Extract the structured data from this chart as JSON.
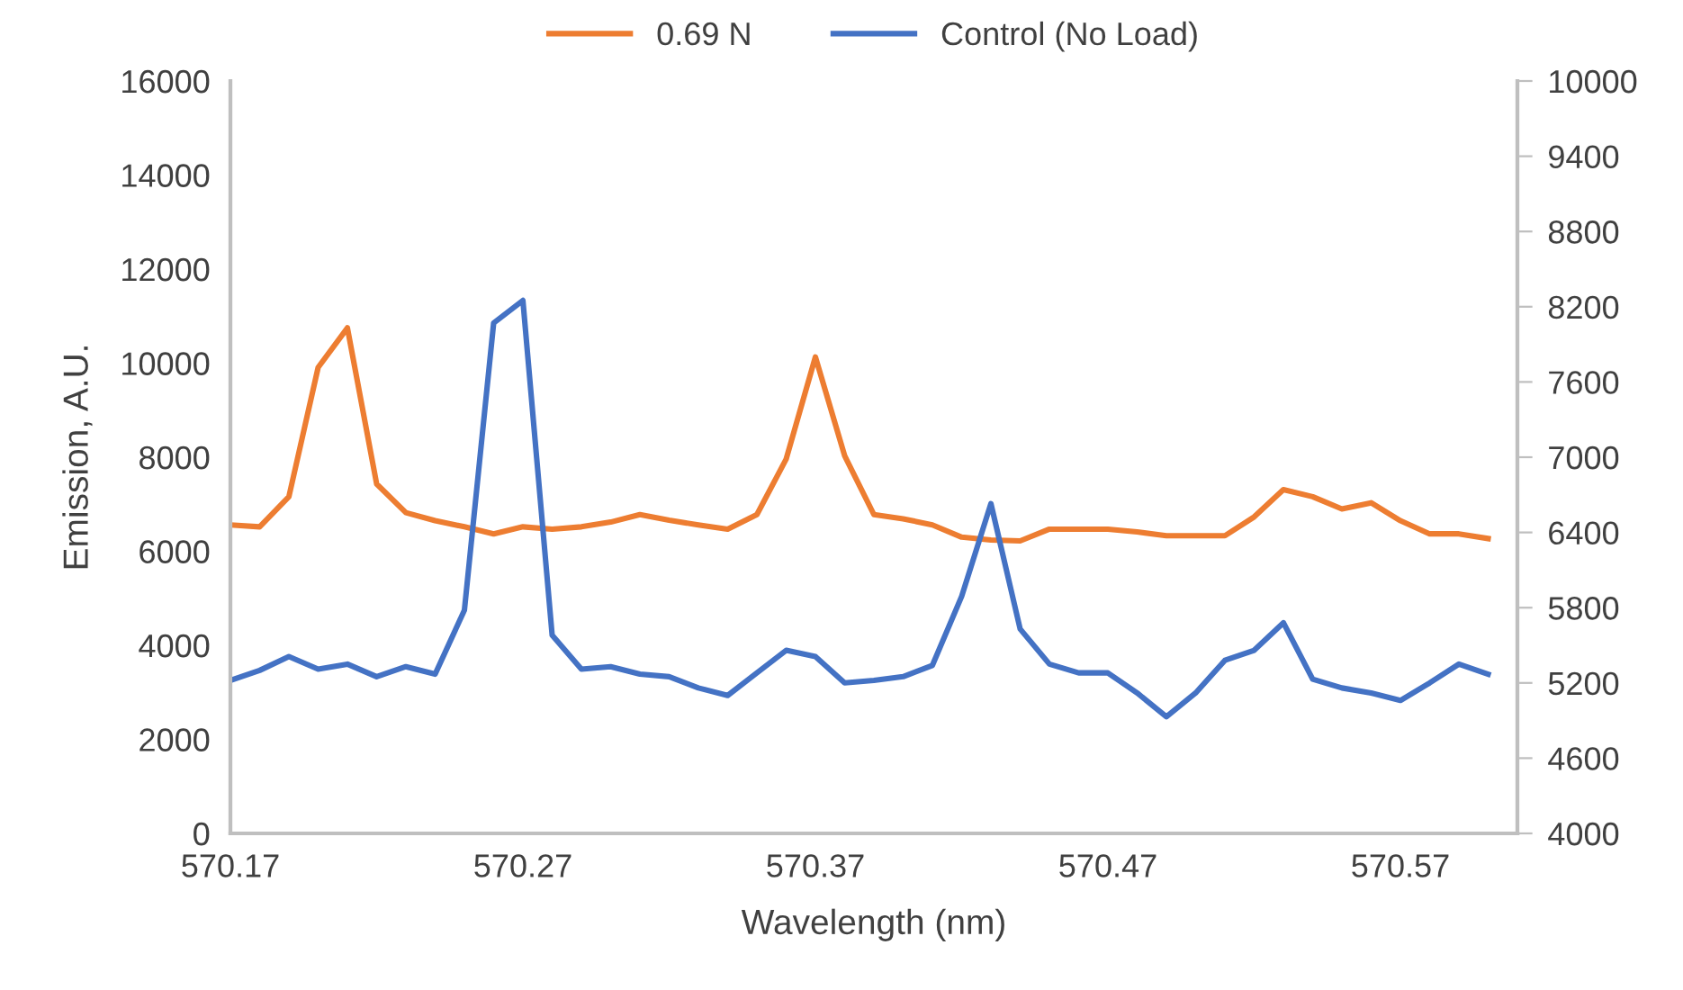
{
  "chart_data": {
    "type": "line",
    "xlabel": "Wavelength (nm)",
    "ylabel": "Emission, A.U.",
    "x": [
      570.17,
      570.18,
      570.19,
      570.2,
      570.21,
      570.22,
      570.23,
      570.24,
      570.25,
      570.26,
      570.27,
      570.28,
      570.29,
      570.3,
      570.31,
      570.32,
      570.33,
      570.34,
      570.35,
      570.36,
      570.37,
      570.38,
      570.39,
      570.4,
      570.41,
      570.42,
      570.43,
      570.44,
      570.45,
      570.46,
      570.47,
      570.48,
      570.49,
      570.5,
      570.51,
      570.52,
      570.53,
      570.54,
      570.55,
      570.56,
      570.57,
      570.58,
      570.59,
      570.6
    ],
    "series": [
      {
        "name": "0.69 N",
        "color": "#ed7d31",
        "values": [
          6560,
          6520,
          7160,
          9910,
          10750,
          7430,
          6820,
          6650,
          6520,
          6370,
          6520,
          6470,
          6520,
          6620,
          6780,
          6660,
          6560,
          6470,
          6780,
          7960,
          10130,
          8030,
          6780,
          6690,
          6560,
          6300,
          6240,
          6220,
          6470,
          6470,
          6470,
          6410,
          6330,
          6330,
          6330,
          6730,
          7310,
          7160,
          6900,
          7030,
          6650,
          6370,
          6370,
          6270
        ]
      },
      {
        "name": "Control (No Load)",
        "color": "#4472c4",
        "axis": "y2",
        "values": [
          5220,
          5300,
          5410,
          5310,
          5350,
          5250,
          5330,
          5270,
          5780,
          8070,
          8250,
          5580,
          5310,
          5330,
          5270,
          5250,
          5160,
          5100,
          5280,
          5460,
          5410,
          5200,
          5220,
          5250,
          5340,
          5890,
          6630,
          5630,
          5350,
          5280,
          5280,
          5120,
          4930,
          5120,
          5380,
          5460,
          5680,
          5230,
          5160,
          5120,
          5060,
          5200,
          5350,
          5270
        ]
      }
    ],
    "xlim": [
      570.17,
      570.61
    ],
    "xticks": [
      570.17,
      570.27,
      570.37,
      570.47,
      570.57
    ],
    "ylim": [
      0,
      16000
    ],
    "yticks": [
      0,
      2000,
      4000,
      6000,
      8000,
      10000,
      12000,
      14000,
      16000
    ],
    "y2lim": [
      4000,
      10000
    ],
    "y2ticks": [
      4000,
      4600,
      5200,
      5800,
      6400,
      7000,
      7600,
      8200,
      8800,
      9400,
      10000
    ],
    "grid": false,
    "legend": "top",
    "marker": "none",
    "line_style": "solid"
  }
}
